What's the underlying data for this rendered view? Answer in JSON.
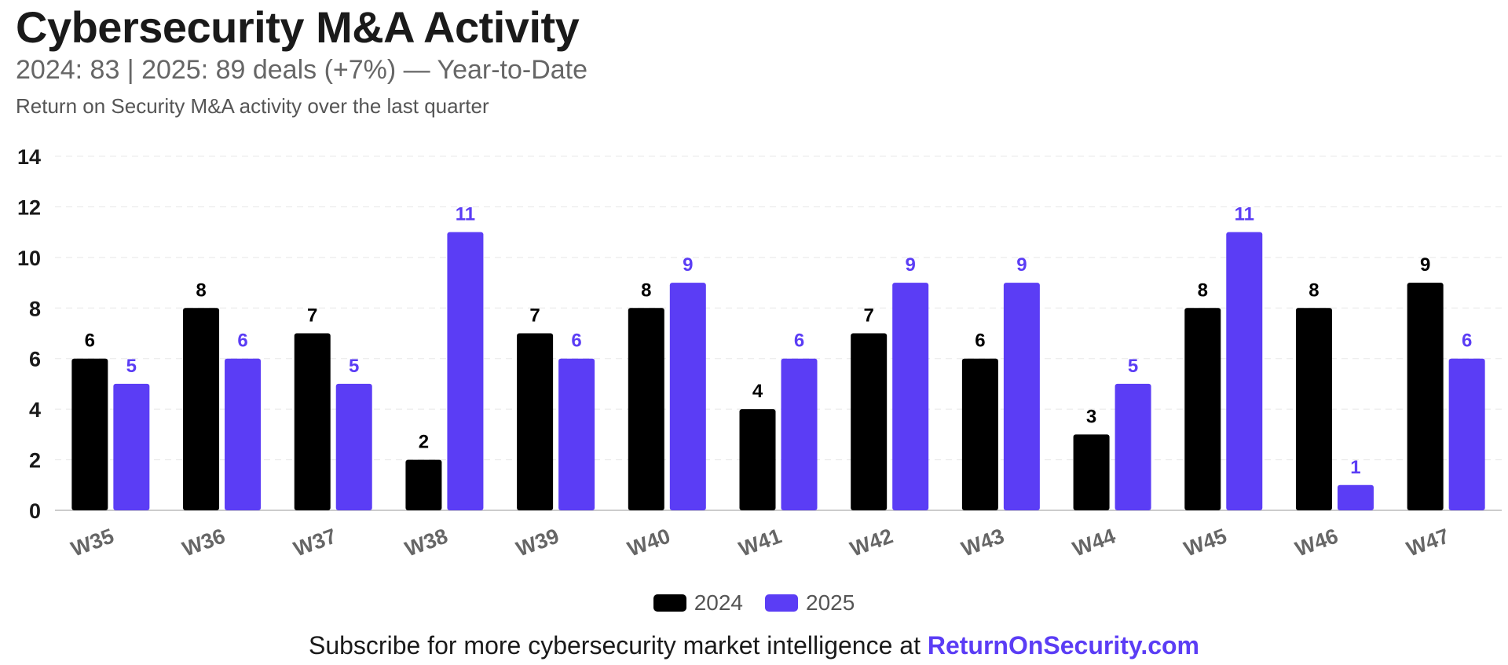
{
  "header": {
    "title": "Cybersecurity M&A Activity",
    "subtitle": "2024: 83 | 2025: 89 deals (+7%) — Year-to-Date",
    "caption": "Return on Security M&A activity over the last quarter"
  },
  "footer": {
    "text": "Subscribe for more cybersecurity market intelligence at ",
    "link": "ReturnOnSecurity.com"
  },
  "colors": {
    "series_2024": "#000000",
    "series_2025": "#5b3df5",
    "grid": "#e8e8e8",
    "tick": "#666666"
  },
  "chart_data": {
    "type": "bar",
    "title": "Cybersecurity M&A Activity",
    "xlabel": "",
    "ylabel": "",
    "ylim": [
      0,
      14
    ],
    "yticks": [
      0,
      2,
      4,
      6,
      8,
      10,
      12,
      14
    ],
    "grid": true,
    "legend_position": "bottom-center",
    "categories": [
      "W35",
      "W36",
      "W37",
      "W38",
      "W39",
      "W40",
      "W41",
      "W42",
      "W43",
      "W44",
      "W45",
      "W46",
      "W47"
    ],
    "series": [
      {
        "name": "2024",
        "values": [
          6,
          8,
          7,
          2,
          7,
          8,
          4,
          7,
          6,
          3,
          8,
          8,
          9
        ]
      },
      {
        "name": "2025",
        "values": [
          5,
          6,
          5,
          11,
          6,
          9,
          6,
          9,
          9,
          5,
          11,
          1,
          6
        ]
      }
    ]
  }
}
